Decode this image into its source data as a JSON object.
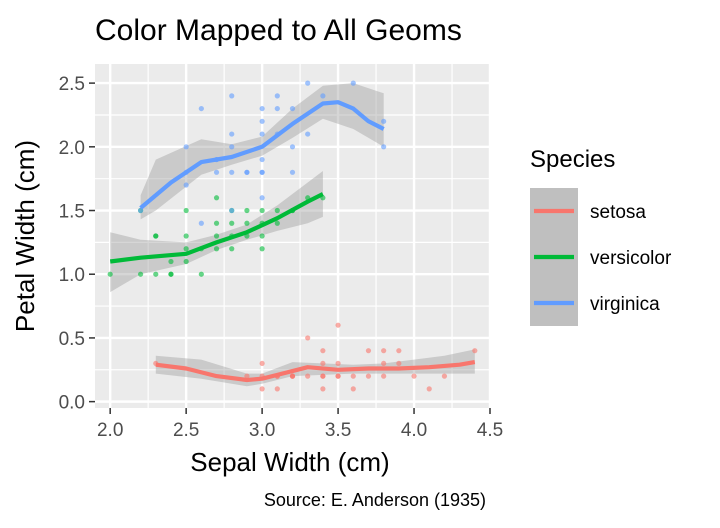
{
  "chart_data": {
    "type": "scatter",
    "title": "Color Mapped to All Geoms",
    "xlabel": "Sepal Width (cm)",
    "ylabel": "Petal Width (cm)",
    "caption": "Source: E. Anderson (1935)",
    "xlim": [
      1.9,
      4.5
    ],
    "ylim": [
      -0.05,
      2.65
    ],
    "x_ticks": [
      2.0,
      2.5,
      3.0,
      3.5,
      4.0,
      4.5
    ],
    "x_tick_labels": [
      "2.0",
      "2.5",
      "3.0",
      "3.5",
      "4.0",
      "4.5"
    ],
    "y_ticks": [
      0.0,
      0.5,
      1.0,
      1.5,
      2.0,
      2.5
    ],
    "y_tick_labels": [
      "0.0",
      "0.5",
      "1.0",
      "1.5",
      "2.0",
      "2.5"
    ],
    "grid": true,
    "legend": {
      "title": "Species",
      "position": "right"
    },
    "series": [
      {
        "name": "setosa",
        "color": "#F8766D",
        "points": [
          [
            2.3,
            0.3
          ],
          [
            2.9,
            0.2
          ],
          [
            3.0,
            0.1
          ],
          [
            3.0,
            0.2
          ],
          [
            3.0,
            0.3
          ],
          [
            3.1,
            0.1
          ],
          [
            3.1,
            0.2
          ],
          [
            3.1,
            0.2
          ],
          [
            3.2,
            0.2
          ],
          [
            3.2,
            0.2
          ],
          [
            3.2,
            0.2
          ],
          [
            3.3,
            0.2
          ],
          [
            3.3,
            0.5
          ],
          [
            3.4,
            0.2
          ],
          [
            3.4,
            0.3
          ],
          [
            3.4,
            0.4
          ],
          [
            3.4,
            0.2
          ],
          [
            3.4,
            0.1
          ],
          [
            3.5,
            0.3
          ],
          [
            3.5,
            0.2
          ],
          [
            3.5,
            0.6
          ],
          [
            3.5,
            0.2
          ],
          [
            3.6,
            0.2
          ],
          [
            3.6,
            0.1
          ],
          [
            3.7,
            0.2
          ],
          [
            3.7,
            0.4
          ],
          [
            3.8,
            0.3
          ],
          [
            3.8,
            0.2
          ],
          [
            3.8,
            0.4
          ],
          [
            3.9,
            0.4
          ],
          [
            3.9,
            0.3
          ],
          [
            4.0,
            0.2
          ],
          [
            4.1,
            0.1
          ],
          [
            4.2,
            0.2
          ],
          [
            4.4,
            0.4
          ]
        ],
        "smooth": [
          [
            2.3,
            0.29
          ],
          [
            2.5,
            0.26
          ],
          [
            2.7,
            0.2
          ],
          [
            2.9,
            0.17
          ],
          [
            3.0,
            0.18
          ],
          [
            3.1,
            0.21
          ],
          [
            3.3,
            0.27
          ],
          [
            3.5,
            0.25
          ],
          [
            3.7,
            0.26
          ],
          [
            3.9,
            0.26
          ],
          [
            4.1,
            0.27
          ],
          [
            4.3,
            0.29
          ],
          [
            4.4,
            0.31
          ]
        ],
        "band": [
          [
            2.3,
            0.22,
            0.36
          ],
          [
            2.6,
            0.18,
            0.33
          ],
          [
            2.9,
            0.12,
            0.22
          ],
          [
            3.0,
            0.14,
            0.22
          ],
          [
            3.2,
            0.2,
            0.31
          ],
          [
            3.4,
            0.21,
            0.3
          ],
          [
            3.6,
            0.22,
            0.29
          ],
          [
            3.8,
            0.22,
            0.3
          ],
          [
            4.0,
            0.22,
            0.33
          ],
          [
            4.2,
            0.22,
            0.36
          ],
          [
            4.4,
            0.22,
            0.41
          ]
        ]
      },
      {
        "name": "versicolor",
        "color": "#00BA38",
        "points": [
          [
            2.0,
            1.0
          ],
          [
            2.2,
            1.0
          ],
          [
            2.2,
            1.5
          ],
          [
            2.3,
            1.3
          ],
          [
            2.3,
            1.3
          ],
          [
            2.3,
            1.0
          ],
          [
            2.4,
            1.1
          ],
          [
            2.4,
            1.0
          ],
          [
            2.4,
            1.0
          ],
          [
            2.5,
            1.1
          ],
          [
            2.5,
            1.2
          ],
          [
            2.5,
            1.5
          ],
          [
            2.5,
            1.3
          ],
          [
            2.6,
            1.2
          ],
          [
            2.6,
            1.0
          ],
          [
            2.7,
            1.3
          ],
          [
            2.7,
            1.2
          ],
          [
            2.7,
            1.4
          ],
          [
            2.7,
            1.6
          ],
          [
            2.8,
            1.3
          ],
          [
            2.8,
            1.5
          ],
          [
            2.8,
            1.2
          ],
          [
            2.8,
            1.4
          ],
          [
            2.9,
            1.3
          ],
          [
            2.9,
            1.4
          ],
          [
            2.9,
            1.5
          ],
          [
            3.0,
            1.4
          ],
          [
            3.0,
            1.5
          ],
          [
            3.0,
            1.2
          ],
          [
            3.0,
            1.3
          ],
          [
            3.1,
            1.5
          ],
          [
            3.1,
            1.4
          ],
          [
            3.2,
            1.5
          ],
          [
            3.2,
            1.5
          ],
          [
            3.3,
            1.6
          ],
          [
            3.4,
            1.6
          ]
        ],
        "smooth": [
          [
            2.0,
            1.1
          ],
          [
            2.2,
            1.13
          ],
          [
            2.5,
            1.16
          ],
          [
            2.7,
            1.25
          ],
          [
            2.9,
            1.33
          ],
          [
            3.1,
            1.44
          ],
          [
            3.3,
            1.57
          ],
          [
            3.4,
            1.63
          ]
        ],
        "band": [
          [
            2.0,
            0.86,
            1.33
          ],
          [
            2.2,
            1.0,
            1.27
          ],
          [
            2.5,
            1.08,
            1.25
          ],
          [
            2.7,
            1.19,
            1.31
          ],
          [
            2.9,
            1.27,
            1.39
          ],
          [
            3.1,
            1.34,
            1.54
          ],
          [
            3.3,
            1.4,
            1.72
          ],
          [
            3.4,
            1.45,
            1.81
          ]
        ]
      },
      {
        "name": "virginica",
        "color": "#619CFF",
        "points": [
          [
            2.2,
            1.5
          ],
          [
            2.5,
            1.7
          ],
          [
            2.5,
            2.0
          ],
          [
            2.5,
            1.8
          ],
          [
            2.6,
            1.4
          ],
          [
            2.6,
            2.3
          ],
          [
            2.7,
            1.9
          ],
          [
            2.7,
            1.8
          ],
          [
            2.7,
            1.9
          ],
          [
            2.8,
            2.1
          ],
          [
            2.8,
            1.5
          ],
          [
            2.8,
            1.8
          ],
          [
            2.8,
            2.0
          ],
          [
            2.8,
            2.4
          ],
          [
            2.9,
            1.8
          ],
          [
            2.9,
            1.8
          ],
          [
            3.0,
            2.1
          ],
          [
            3.0,
            1.8
          ],
          [
            3.0,
            2.2
          ],
          [
            3.0,
            1.6
          ],
          [
            3.0,
            1.8
          ],
          [
            3.0,
            2.3
          ],
          [
            3.0,
            1.9
          ],
          [
            3.1,
            2.1
          ],
          [
            3.1,
            2.4
          ],
          [
            3.1,
            2.3
          ],
          [
            3.2,
            2.0
          ],
          [
            3.2,
            2.3
          ],
          [
            3.2,
            1.8
          ],
          [
            3.3,
            2.5
          ],
          [
            3.3,
            2.1
          ],
          [
            3.4,
            2.4
          ],
          [
            3.6,
            2.5
          ],
          [
            3.8,
            2.0
          ],
          [
            3.8,
            2.2
          ]
        ],
        "smooth": [
          [
            2.2,
            1.52
          ],
          [
            2.4,
            1.72
          ],
          [
            2.6,
            1.88
          ],
          [
            2.8,
            1.92
          ],
          [
            3.0,
            2.0
          ],
          [
            3.2,
            2.18
          ],
          [
            3.4,
            2.34
          ],
          [
            3.5,
            2.35
          ],
          [
            3.6,
            2.3
          ],
          [
            3.7,
            2.2
          ],
          [
            3.8,
            2.14
          ]
        ],
        "band": [
          [
            2.2,
            1.43,
            1.62
          ],
          [
            2.3,
            1.5,
            1.9
          ],
          [
            2.6,
            1.78,
            2.06
          ],
          [
            2.8,
            1.86,
            2.02
          ],
          [
            3.0,
            1.93,
            2.08
          ],
          [
            3.2,
            2.07,
            2.3
          ],
          [
            3.4,
            2.22,
            2.48
          ],
          [
            3.6,
            2.14,
            2.5
          ],
          [
            3.8,
            2.0,
            2.42
          ]
        ]
      }
    ]
  }
}
